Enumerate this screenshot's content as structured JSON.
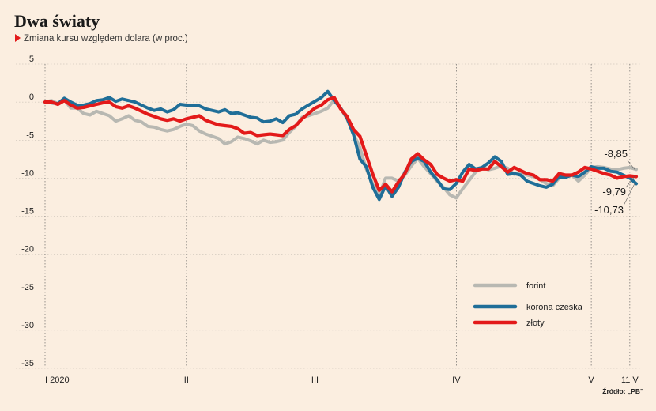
{
  "title": "Dwa światy",
  "subtitle": "Zmiana kursu względem dolara (w proc.)",
  "source": "Źródło: „PB\"",
  "colors": {
    "forint": "#b8b8b2",
    "korona": "#1f6e98",
    "zloty": "#e31a1a",
    "background": "#fbeee0",
    "accent": "#e31a1a"
  },
  "chart_data": {
    "type": "line",
    "title": "Dwa światy",
    "subtitle": "Zmiana kursu względem dolara (w proc.)",
    "ylim": [
      -35,
      5
    ],
    "yticks": [
      5,
      0,
      -5,
      -10,
      -15,
      -20,
      -25,
      -30,
      -35
    ],
    "x_axis": {
      "labels": [
        {
          "text": "I 2020",
          "t": 0
        },
        {
          "text": "II",
          "t": 22
        },
        {
          "text": "III",
          "t": 42
        },
        {
          "text": "IV",
          "t": 64
        },
        {
          "text": "V",
          "t": 85
        },
        {
          "text": "11 V",
          "t": 91
        }
      ],
      "tmax": 92
    },
    "grid": true,
    "legend_position": "bottom-right",
    "end_labels": [
      "-8,85",
      "-9,79",
      "-10,73"
    ],
    "series": [
      {
        "name": "forint",
        "values": [
          0,
          0.2,
          -0.2,
          0.3,
          -0.8,
          -0.8,
          -1.5,
          -1.7,
          -1.2,
          -1.5,
          -1.8,
          -2.5,
          -2.2,
          -1.8,
          -2.4,
          -2.6,
          -3.2,
          -3.3,
          -3.6,
          -3.8,
          -3.6,
          -3.2,
          -2.9,
          -3.1,
          -3.8,
          -4.2,
          -4.5,
          -4.8,
          -5.5,
          -5.2,
          -4.6,
          -4.8,
          -5.1,
          -5.5,
          -5,
          -5.3,
          -5.2,
          -5,
          -4,
          -3.2,
          -2,
          -1.8,
          -1.5,
          -1.2,
          -0.8,
          0.3,
          -0.8,
          -2.2,
          -4.2,
          -6,
          -8.8,
          -10.8,
          -12.2,
          -10,
          -10,
          -10.4,
          -9.6,
          -8.4,
          -7.4,
          -8.5,
          -9.4,
          -10.4,
          -11.2,
          -12.2,
          -12.6,
          -11.4,
          -10.3,
          -9.2,
          -8.6,
          -8.9,
          -8.7,
          -8.4,
          -8.7,
          -9.5,
          -9.3,
          -9.6,
          -9.8,
          -10.2,
          -10.7,
          -11,
          -10,
          -9.8,
          -9.6,
          -10.4,
          -9.6,
          -8.6,
          -8.5,
          -8.6,
          -8.8,
          -8.9,
          -8.7,
          -8.6,
          -8.85
        ]
      },
      {
        "name": "korona czeska",
        "values": [
          0,
          -0.1,
          -0.2,
          0.5,
          0,
          -0.4,
          -0.4,
          -0.2,
          0.2,
          0.3,
          0.6,
          0.1,
          0.4,
          0.2,
          0,
          -0.4,
          -0.8,
          -1.1,
          -0.9,
          -1.3,
          -1,
          -0.3,
          -0.4,
          -0.5,
          -0.5,
          -0.9,
          -1.1,
          -1.3,
          -1,
          -1.5,
          -1.4,
          -1.7,
          -2,
          -2.1,
          -2.6,
          -2.5,
          -2.2,
          -2.7,
          -1.8,
          -1.6,
          -0.9,
          -0.4,
          0.1,
          0.6,
          1.4,
          0.2,
          -0.8,
          -2.1,
          -4.3,
          -7.5,
          -8.5,
          -11.2,
          -12.8,
          -11,
          -12.4,
          -11.2,
          -9.2,
          -7.8,
          -7.4,
          -7.8,
          -9.2,
          -10.2,
          -11.4,
          -11.5,
          -10.7,
          -9.2,
          -8.2,
          -8.8,
          -8.6,
          -8,
          -7.2,
          -7.8,
          -9.5,
          -9.4,
          -9.6,
          -10.4,
          -10.7,
          -11,
          -11.2,
          -10.8,
          -9.8,
          -9.9,
          -9.6,
          -9.8,
          -9.2,
          -8.5,
          -8.7,
          -8.7,
          -9.1,
          -9.2,
          -9.6,
          -10,
          -10.73
        ]
      },
      {
        "name": "złoty",
        "values": [
          0,
          0,
          -0.3,
          0.2,
          -0.4,
          -0.8,
          -0.7,
          -0.5,
          -0.3,
          -0.1,
          0,
          -0.6,
          -0.8,
          -0.5,
          -0.8,
          -1.2,
          -1.6,
          -1.9,
          -2.2,
          -2.4,
          -2.2,
          -2.5,
          -2.2,
          -2,
          -1.8,
          -2.4,
          -2.7,
          -3,
          -3.1,
          -3.2,
          -3.5,
          -4.1,
          -4,
          -4.4,
          -4.3,
          -4.2,
          -4.3,
          -4.4,
          -3.6,
          -3.1,
          -2.2,
          -1.5,
          -0.8,
          -0.4,
          0.3,
          0.6,
          -0.9,
          -1.9,
          -3.6,
          -4.5,
          -7,
          -9.5,
          -11.6,
          -10.8,
          -11.8,
          -10.5,
          -9.4,
          -7.5,
          -6.8,
          -7.6,
          -8.2,
          -9.5,
          -10,
          -10.4,
          -10.2,
          -10.4,
          -8.8,
          -9,
          -8.8,
          -8.8,
          -7.8,
          -8.5,
          -9.2,
          -8.6,
          -9,
          -9.4,
          -9.6,
          -10.2,
          -10.2,
          -10.4,
          -9.4,
          -9.6,
          -9.6,
          -9.2,
          -8.6,
          -8.8,
          -9.1,
          -9.4,
          -9.6,
          -10,
          -9.8,
          -9.7,
          -9.79
        ]
      }
    ]
  }
}
